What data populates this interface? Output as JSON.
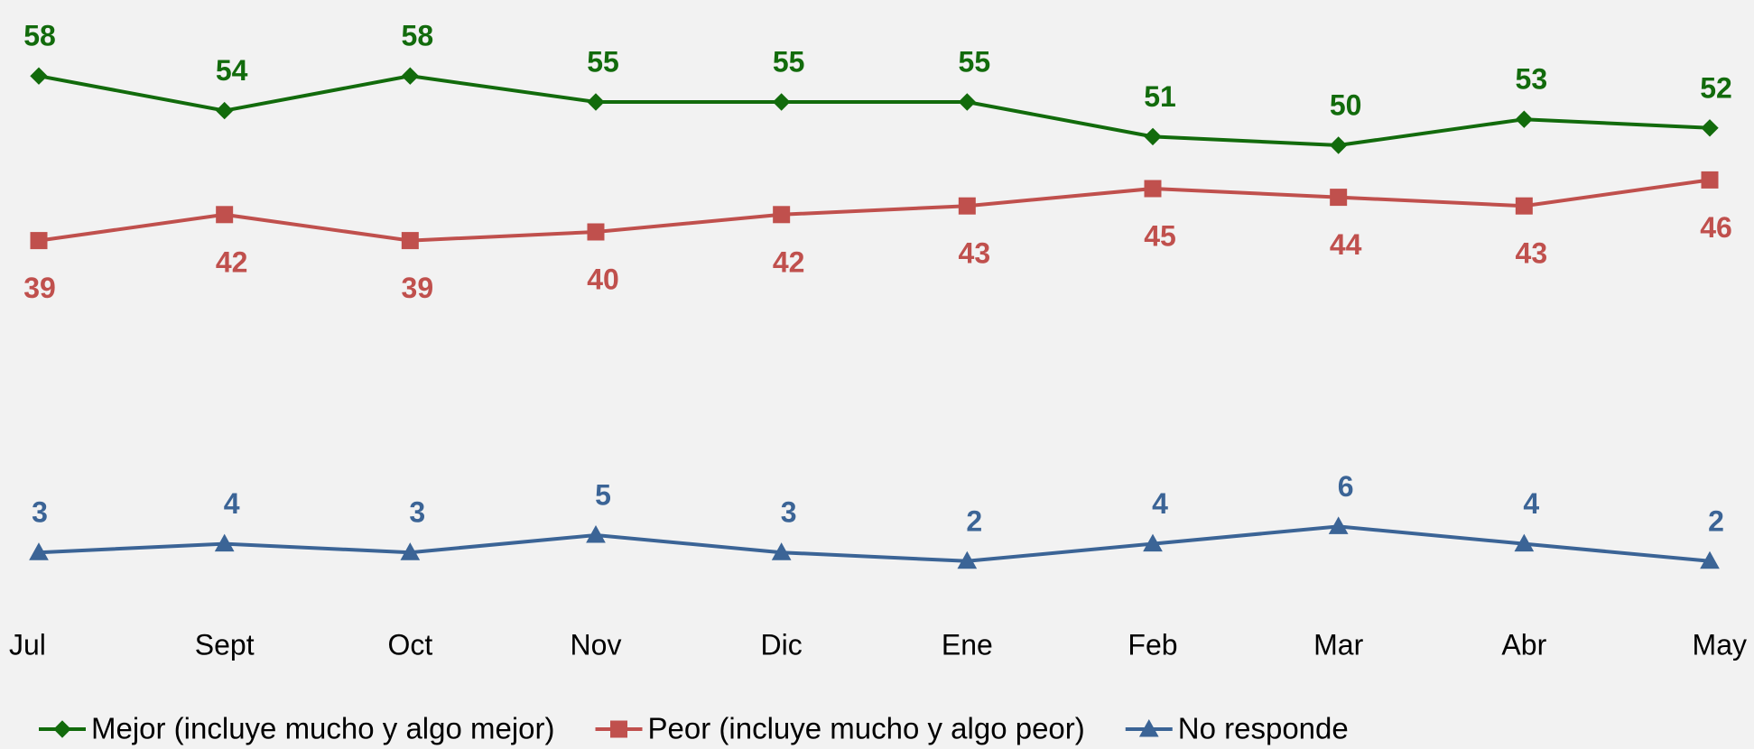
{
  "chart_data": {
    "type": "line",
    "categories": [
      "Jul",
      "Sept",
      "Oct",
      "Nov",
      "Dic",
      "Ene",
      "Feb",
      "Mar",
      "Abr",
      "May"
    ],
    "series": [
      {
        "name": "Mejor (incluye mucho y algo mejor)",
        "color": "#126b0c",
        "marker": "diamond",
        "label_position": "above",
        "values": [
          58,
          54,
          58,
          55,
          55,
          55,
          51,
          50,
          53,
          52
        ]
      },
      {
        "name": "Peor (incluye mucho y algo peor)",
        "color": "#c0504d",
        "marker": "square",
        "label_position": "below",
        "values": [
          39,
          42,
          39,
          40,
          42,
          43,
          45,
          44,
          43,
          46
        ]
      },
      {
        "name": "No responde",
        "color": "#3b6496",
        "marker": "triangle",
        "label_position": "above",
        "values": [
          3,
          4,
          3,
          5,
          3,
          2,
          4,
          6,
          4,
          2
        ]
      }
    ],
    "ylim": [
      0,
      60
    ],
    "legend": "bottom"
  }
}
